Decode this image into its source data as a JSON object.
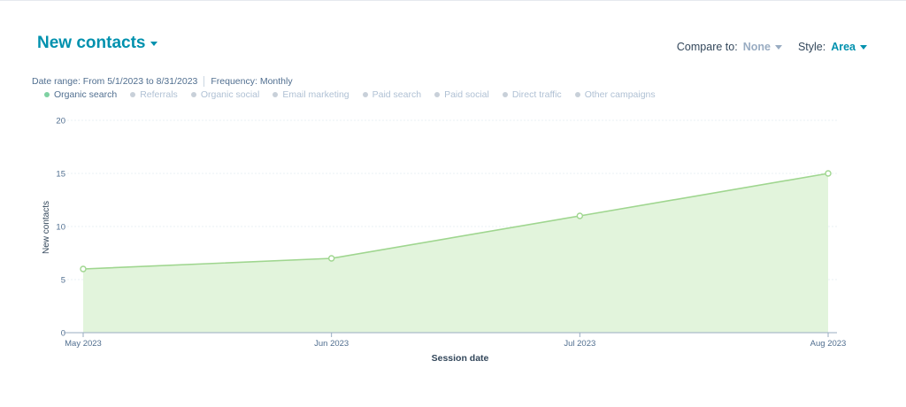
{
  "header": {
    "title": "New contacts",
    "compare_label": "Compare to:",
    "compare_value": "None",
    "style_label": "Style:",
    "style_value": "Area"
  },
  "meta": {
    "date_range": "Date range: From 5/1/2023 to 8/31/2023",
    "frequency": "Frequency: Monthly"
  },
  "legend": [
    {
      "label": "Organic search",
      "active": true
    },
    {
      "label": "Referrals",
      "active": false
    },
    {
      "label": "Organic social",
      "active": false
    },
    {
      "label": "Email marketing",
      "active": false
    },
    {
      "label": "Paid search",
      "active": false
    },
    {
      "label": "Paid social",
      "active": false
    },
    {
      "label": "Direct traffic",
      "active": false
    },
    {
      "label": "Other campaigns",
      "active": false
    }
  ],
  "colors": {
    "accent": "#0091ae",
    "series_line": "#9fd68f",
    "series_fill": "#e2f4dc",
    "grid": "#eaf0f6",
    "axis": "#99acc2"
  },
  "chart_data": {
    "type": "area",
    "categories": [
      "May 2023",
      "Jun 2023",
      "Jul 2023",
      "Aug 2023"
    ],
    "series": [
      {
        "name": "Organic search",
        "values": [
          6,
          7,
          11,
          15
        ]
      }
    ],
    "xlabel": "Session date",
    "ylabel": "New contacts",
    "ylim": [
      0,
      20
    ],
    "yticks": [
      0,
      5,
      10,
      15,
      20
    ],
    "grid": true
  }
}
